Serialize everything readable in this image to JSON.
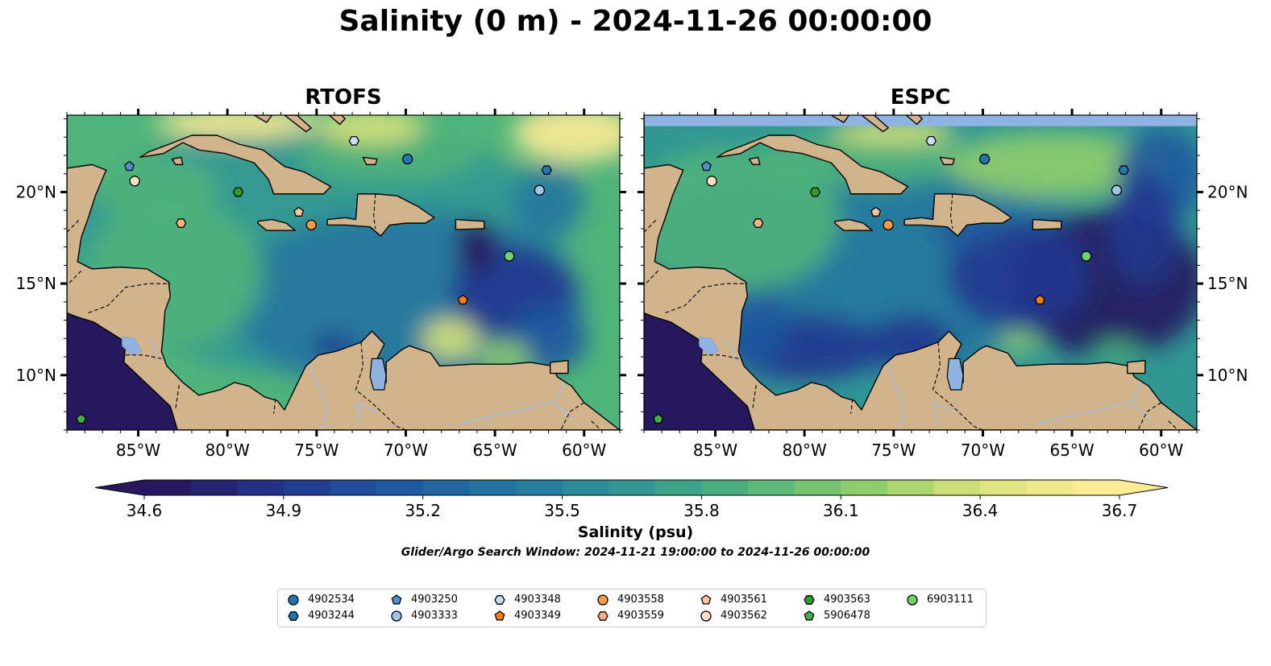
{
  "title": "Salinity (0 m) - 2024-11-26 00:00:00",
  "panels": [
    {
      "id": "rtofs",
      "title": "RTOFS"
    },
    {
      "id": "espc",
      "title": "ESPC"
    }
  ],
  "map_extent": {
    "lon": [
      -89,
      -58
    ],
    "lat": [
      7,
      24.2
    ]
  },
  "lon_ticks": [
    {
      "value": -85,
      "label": "85°W"
    },
    {
      "value": -80,
      "label": "80°W"
    },
    {
      "value": -75,
      "label": "75°W"
    },
    {
      "value": -70,
      "label": "70°W"
    },
    {
      "value": -65,
      "label": "65°W"
    },
    {
      "value": -60,
      "label": "60°W"
    }
  ],
  "lat_ticks": [
    {
      "value": 20,
      "label": "20°N"
    },
    {
      "value": 15,
      "label": "15°N"
    },
    {
      "value": 10,
      "label": "10°N"
    }
  ],
  "colorbar": {
    "label": "Salinity (psu)",
    "min": 34.6,
    "max": 36.7,
    "ticks": [
      "34.6",
      "34.9",
      "35.2",
      "35.5",
      "35.8",
      "36.1",
      "36.4",
      "36.7"
    ],
    "colormap": [
      "#26185f",
      "#23378f",
      "#1f5aa0",
      "#24789f",
      "#309793",
      "#4fb47a",
      "#8ecd6b",
      "#d9e37a",
      "#fdeb95"
    ]
  },
  "search_window": "Glider/Argo Search Window: 2024-11-21 19:00:00 to 2024-11-26 00:00:00",
  "colors": {
    "land": "#d2b48c",
    "lake": "#8fb4e3",
    "river": "#a5bfdd",
    "espc_nodata": "#8fb4e3"
  },
  "floats": [
    {
      "id": "4902534",
      "marker": "circle",
      "color": "#1f77b4",
      "lon": -69.9,
      "lat": 21.8
    },
    {
      "id": "4903244",
      "marker": "hexagon",
      "color": "#1f77b4",
      "lon": -62.1,
      "lat": 21.2
    },
    {
      "id": "4903250",
      "marker": "pentagon",
      "color": "#4f8fcf",
      "lon": -85.5,
      "lat": 21.4
    },
    {
      "id": "4903333",
      "marker": "circle",
      "color": "#9ec6ea",
      "lon": -62.5,
      "lat": 20.1
    },
    {
      "id": "4903348",
      "marker": "hexagon",
      "color": "#c6e1f5",
      "lon": -72.9,
      "lat": 22.8
    },
    {
      "id": "4903349",
      "marker": "pentagon",
      "color": "#ff7f0e",
      "lon": -66.8,
      "lat": 14.1
    },
    {
      "id": "4903558",
      "marker": "circle",
      "color": "#fd9a45",
      "lon": -75.3,
      "lat": 18.2
    },
    {
      "id": "4903559",
      "marker": "hexagon",
      "color": "#fdb27b",
      "lon": -82.6,
      "lat": 18.3
    },
    {
      "id": "4903561",
      "marker": "pentagon",
      "color": "#fdc59a",
      "lon": -76.0,
      "lat": 18.9
    },
    {
      "id": "4903562",
      "marker": "circle",
      "color": "#fde0c5",
      "lon": -85.2,
      "lat": 20.6
    },
    {
      "id": "4903563",
      "marker": "hexagon",
      "color": "#2ca02c",
      "lon": -79.4,
      "lat": 20.0
    },
    {
      "id": "5906478",
      "marker": "pentagon",
      "color": "#43b043",
      "lon": -88.2,
      "lat": 7.6
    },
    {
      "id": "6903111",
      "marker": "circle",
      "color": "#6ed36e",
      "lon": -64.2,
      "lat": 16.5
    }
  ]
}
